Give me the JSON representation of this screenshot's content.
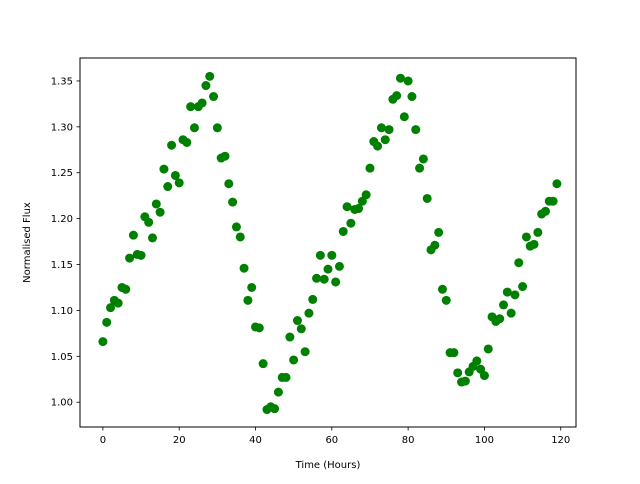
{
  "chart_data": {
    "type": "scatter",
    "title": "",
    "xlabel": "Time (Hours)",
    "ylabel": "Normalised Flux",
    "xlim": [
      -6,
      124
    ],
    "ylim": [
      0.973,
      1.375
    ],
    "xticks": [
      0,
      20,
      40,
      60,
      80,
      100,
      120
    ],
    "xtick_labels": [
      "0",
      "20",
      "40",
      "60",
      "80",
      "100",
      "120"
    ],
    "yticks": [
      1.0,
      1.05,
      1.1,
      1.15,
      1.2,
      1.25,
      1.3,
      1.35
    ],
    "ytick_labels": [
      "1.00",
      "1.05",
      "1.10",
      "1.15",
      "1.20",
      "1.25",
      "1.30",
      "1.35"
    ],
    "grid": false,
    "marker_color": "#008000",
    "series": [
      {
        "marker": "circle",
        "x": [
          0,
          1,
          2,
          3,
          4,
          5,
          6,
          7,
          8,
          9,
          10,
          11,
          12,
          13,
          14,
          15,
          16,
          17,
          18,
          19,
          20,
          21,
          22,
          23,
          24,
          25,
          26,
          27,
          28,
          29,
          30,
          31,
          32,
          33,
          34,
          35,
          36,
          37,
          38,
          39,
          40,
          41,
          42,
          43,
          44,
          45,
          46,
          47,
          48,
          49,
          50,
          51,
          52,
          53,
          54,
          55,
          56,
          57,
          58,
          59,
          60,
          61,
          62,
          63,
          64,
          65,
          66,
          67,
          68,
          69,
          70,
          71,
          72,
          73,
          74,
          75,
          76,
          77,
          78,
          79,
          80,
          81,
          82,
          83,
          84,
          85,
          86,
          87,
          88,
          89,
          90,
          91,
          92,
          93,
          94,
          95,
          96,
          97,
          98,
          99,
          100,
          101,
          102,
          103,
          104,
          105,
          106,
          107,
          108,
          109,
          110,
          111,
          112,
          113,
          114,
          115,
          116,
          117,
          118,
          119
        ],
        "y": [
          1.066,
          1.087,
          1.103,
          1.111,
          1.108,
          1.125,
          1.123,
          1.157,
          1.182,
          1.161,
          1.16,
          1.202,
          1.196,
          1.179,
          1.216,
          1.207,
          1.254,
          1.235,
          1.28,
          1.247,
          1.239,
          1.286,
          1.283,
          1.322,
          1.299,
          1.322,
          1.326,
          1.345,
          1.355,
          1.333,
          1.299,
          1.266,
          1.268,
          1.238,
          1.218,
          1.191,
          1.18,
          1.146,
          1.111,
          1.125,
          1.082,
          1.081,
          1.042,
          0.992,
          0.995,
          0.993,
          1.011,
          1.027,
          1.027,
          1.071,
          1.046,
          1.089,
          1.08,
          1.055,
          1.097,
          1.112,
          1.135,
          1.16,
          1.134,
          1.145,
          1.16,
          1.131,
          1.148,
          1.186,
          1.213,
          1.195,
          1.21,
          1.211,
          1.219,
          1.226,
          1.255,
          1.284,
          1.279,
          1.299,
          1.286,
          1.297,
          1.33,
          1.334,
          1.353,
          1.311,
          1.35,
          1.333,
          1.297,
          1.255,
          1.265,
          1.222,
          1.166,
          1.171,
          1.185,
          1.123,
          1.111,
          1.054,
          1.054,
          1.032,
          1.022,
          1.023,
          1.033,
          1.039,
          1.045,
          1.036,
          1.029,
          1.058,
          1.093,
          1.088,
          1.091,
          1.106,
          1.12,
          1.097,
          1.117,
          1.152,
          1.126,
          1.18,
          1.17,
          1.172,
          1.185,
          1.205,
          1.208,
          1.219,
          1.219,
          1.238
        ]
      }
    ]
  }
}
